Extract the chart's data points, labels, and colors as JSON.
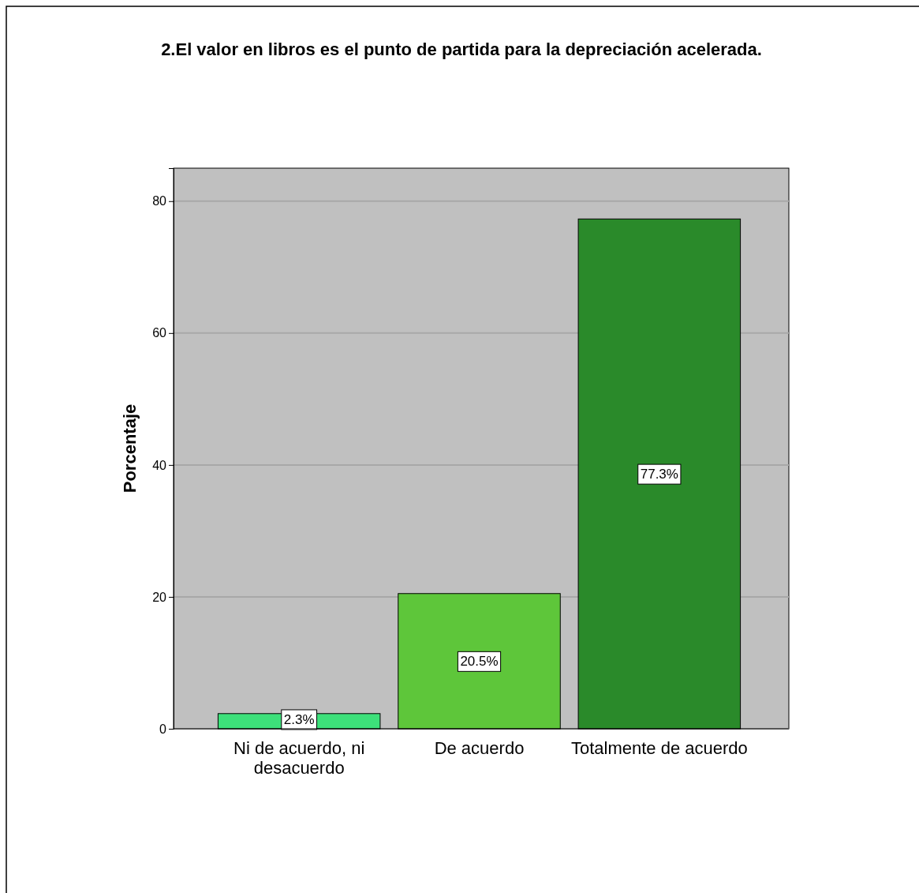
{
  "chart_data": {
    "type": "bar",
    "title": "2.El valor en libros es el punto de partida para la depreciación acelerada.",
    "ylabel": "Porcentaje",
    "categories": [
      "Ni de acuerdo, ni desacuerdo",
      "De acuerdo",
      "Totalmente de acuerdo"
    ],
    "values": [
      2.3,
      20.5,
      77.3
    ],
    "colors": [
      "#3de07a",
      "#5ec63a",
      "#2a8a2a"
    ],
    "value_labels": [
      "2.3%",
      "20.5%",
      "77.3%"
    ],
    "ylim": [
      0,
      85
    ],
    "yticks": [
      0,
      20,
      40,
      60,
      80
    ],
    "grid": "y"
  }
}
